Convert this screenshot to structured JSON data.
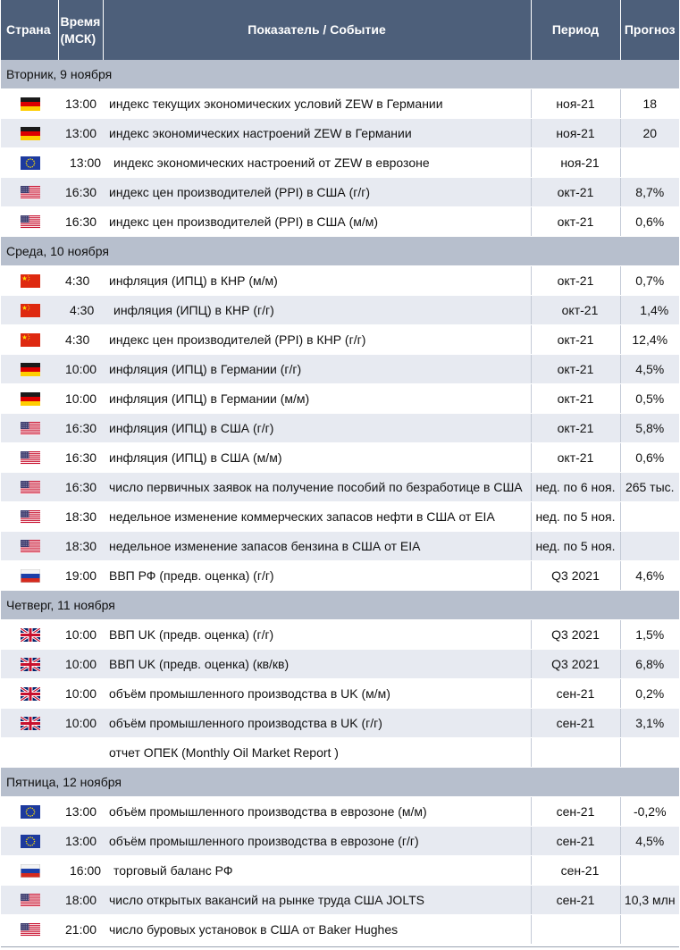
{
  "headers": {
    "country": "Страна",
    "time_line1": "Время",
    "time_line2": "(МСК)",
    "event": "Показатель / Событие",
    "period": "Период",
    "forecast": "Прогноз"
  },
  "days": [
    {
      "label": "Вторник, 9 ноября",
      "events": [
        {
          "flag": "de-flag-icon",
          "time": "13:00",
          "event": "индекс текущих экономических условий ZEW в Германии",
          "period": "ноя-21",
          "forecast": "18"
        },
        {
          "flag": "de-flag-icon",
          "time": "13:00",
          "event": "индекс экономических настроений ZEW в Германии",
          "period": "ноя-21",
          "forecast": "20"
        },
        {
          "flag": "eu-flag-icon",
          "time": "13:00",
          "event": "индекс экономических настроений от ZEW в еврозоне",
          "period": "ноя-21",
          "forecast": ""
        },
        {
          "flag": "us-flag-icon",
          "time": "16:30",
          "event": "индекс цен производителей (PPI) в США (г/г)",
          "period": "окт-21",
          "forecast": "8,7%"
        },
        {
          "flag": "us-flag-icon",
          "time": "16:30",
          "event": "индекс цен производителей (PPI) в США (м/м)",
          "period": "окт-21",
          "forecast": "0,6%"
        }
      ]
    },
    {
      "label": "Среда, 10 ноября",
      "events": [
        {
          "flag": "cn-flag-icon",
          "time": "4:30",
          "event": "инфляция (ИПЦ) в КНР (м/м)",
          "period": "окт-21",
          "forecast": "0,7%"
        },
        {
          "flag": "cn-flag-icon",
          "time": "4:30",
          "event": "инфляция (ИПЦ) в КНР (г/г)",
          "period": "окт-21",
          "forecast": "1,4%"
        },
        {
          "flag": "cn-flag-icon",
          "time": "4:30",
          "event": "индекс цен производителей (PPI) в КНР (г/г)",
          "period": "окт-21",
          "forecast": "12,4%"
        },
        {
          "flag": "de-flag-icon",
          "time": "10:00",
          "event": "инфляция (ИПЦ) в Германии (г/г)",
          "period": "окт-21",
          "forecast": "4,5%"
        },
        {
          "flag": "de-flag-icon",
          "time": "10:00",
          "event": "инфляция (ИПЦ) в Германии (м/м)",
          "period": "окт-21",
          "forecast": "0,5%"
        },
        {
          "flag": "us-flag-icon",
          "time": "16:30",
          "event": "инфляция (ИПЦ) в США (г/г)",
          "period": "окт-21",
          "forecast": "5,8%"
        },
        {
          "flag": "us-flag-icon",
          "time": "16:30",
          "event": "инфляция (ИПЦ) в США (м/м)",
          "period": "окт-21",
          "forecast": "0,6%"
        },
        {
          "flag": "us-flag-icon",
          "time": "16:30",
          "event": "число первичных заявок на получение пособий по безработице в США",
          "period": "нед. по 6 ноя.",
          "forecast": "265 тыс."
        },
        {
          "flag": "us-flag-icon",
          "time": "18:30",
          "event": "недельное изменение коммерческих запасов нефти в США от EIA",
          "period": "нед. по 5 ноя.",
          "forecast": ""
        },
        {
          "flag": "us-flag-icon",
          "time": "18:30",
          "event": "недельное изменение запасов бензина в США от EIA",
          "period": "нед. по 5 ноя.",
          "forecast": ""
        },
        {
          "flag": "ru-flag-icon",
          "time": "19:00",
          "event": "ВВП РФ (предв. оценка) (г/г)",
          "period": "Q3 2021",
          "forecast": "4,6%"
        }
      ]
    },
    {
      "label": "Четверг, 11 ноября",
      "events": [
        {
          "flag": "uk-flag-icon",
          "time": "10:00",
          "event": "ВВП UK (предв. оценка) (г/г)",
          "period": "Q3 2021",
          "forecast": "1,5%"
        },
        {
          "flag": "uk-flag-icon",
          "time": "10:00",
          "event": "ВВП UK (предв. оценка) (кв/кв)",
          "period": "Q3 2021",
          "forecast": "6,8%"
        },
        {
          "flag": "uk-flag-icon",
          "time": "10:00",
          "event": "объём промышленного производства в UK (м/м)",
          "period": "сен-21",
          "forecast": "0,2%"
        },
        {
          "flag": "uk-flag-icon",
          "time": "10:00",
          "event": "объём промышленного производства в UK (г/г)",
          "period": "сен-21",
          "forecast": "3,1%"
        },
        {
          "flag": "",
          "time": "",
          "event": "отчет ОПЕК (Monthly Oil Market Report )",
          "period": "",
          "forecast": ""
        }
      ]
    },
    {
      "label": "Пятница, 12 ноября",
      "events": [
        {
          "flag": "eu-flag-icon",
          "time": "13:00",
          "event": "объём промышленного производства в еврозоне (м/м)",
          "period": "сен-21",
          "forecast": "-0,2%"
        },
        {
          "flag": "eu-flag-icon",
          "time": "13:00",
          "event": "объём промышленного производства в еврозоне (г/г)",
          "period": "сен-21",
          "forecast": "4,5%"
        },
        {
          "flag": "ru-flag-icon",
          "time": "16:00",
          "event": "торговый баланс РФ",
          "period": "сен-21",
          "forecast": ""
        },
        {
          "flag": "us-flag-icon",
          "time": "18:00",
          "event": "число открытых вакансий на рынке труда США JOLTS",
          "period": "сен-21",
          "forecast": "10,3 млн"
        },
        {
          "flag": "us-flag-icon",
          "time": "21:00",
          "event": "число буровых установок в США от Baker Hughes",
          "period": "",
          "forecast": ""
        }
      ]
    }
  ]
}
